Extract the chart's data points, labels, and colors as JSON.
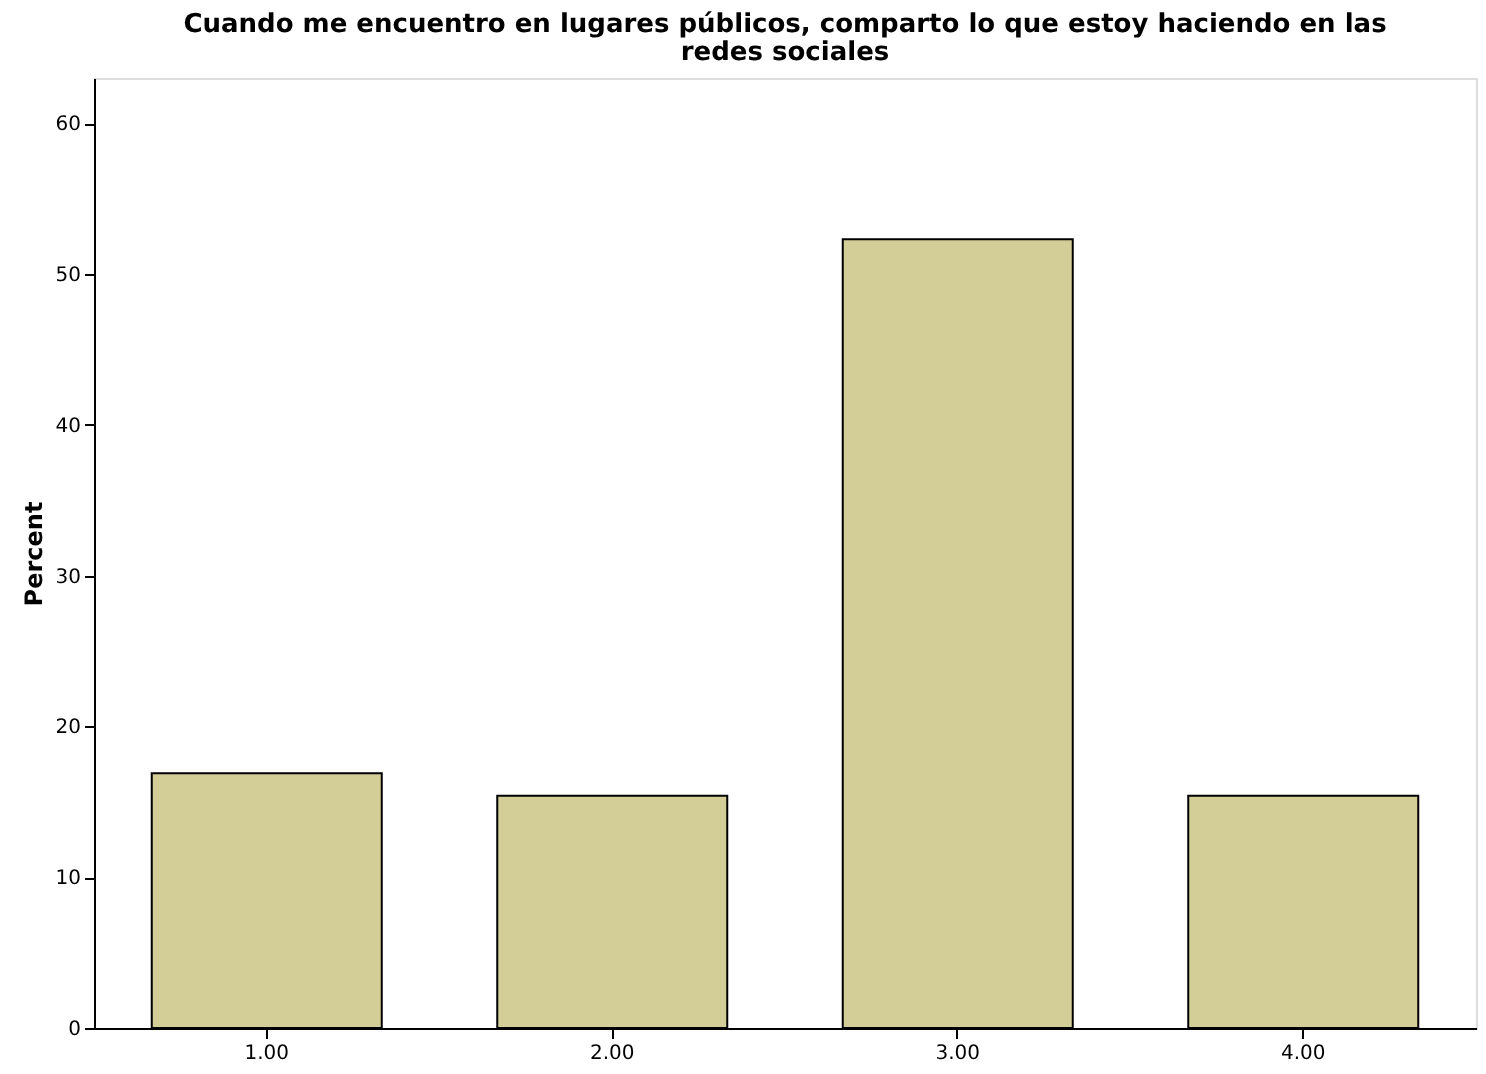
{
  "chart_data": {
    "type": "bar",
    "title": "Cuando me encuentro en lugares públicos, comparto lo que estoy haciendo en las redes sociales",
    "ylabel": "Percent",
    "categories": [
      "1.00",
      "2.00",
      "3.00",
      "4.00"
    ],
    "values": [
      16.9,
      15.4,
      52.3,
      15.4
    ],
    "color": "#d3ce97",
    "ylim": [
      0,
      63
    ],
    "yticks": [
      0,
      10,
      20,
      30,
      40,
      50,
      60
    ],
    "grid": false
  }
}
